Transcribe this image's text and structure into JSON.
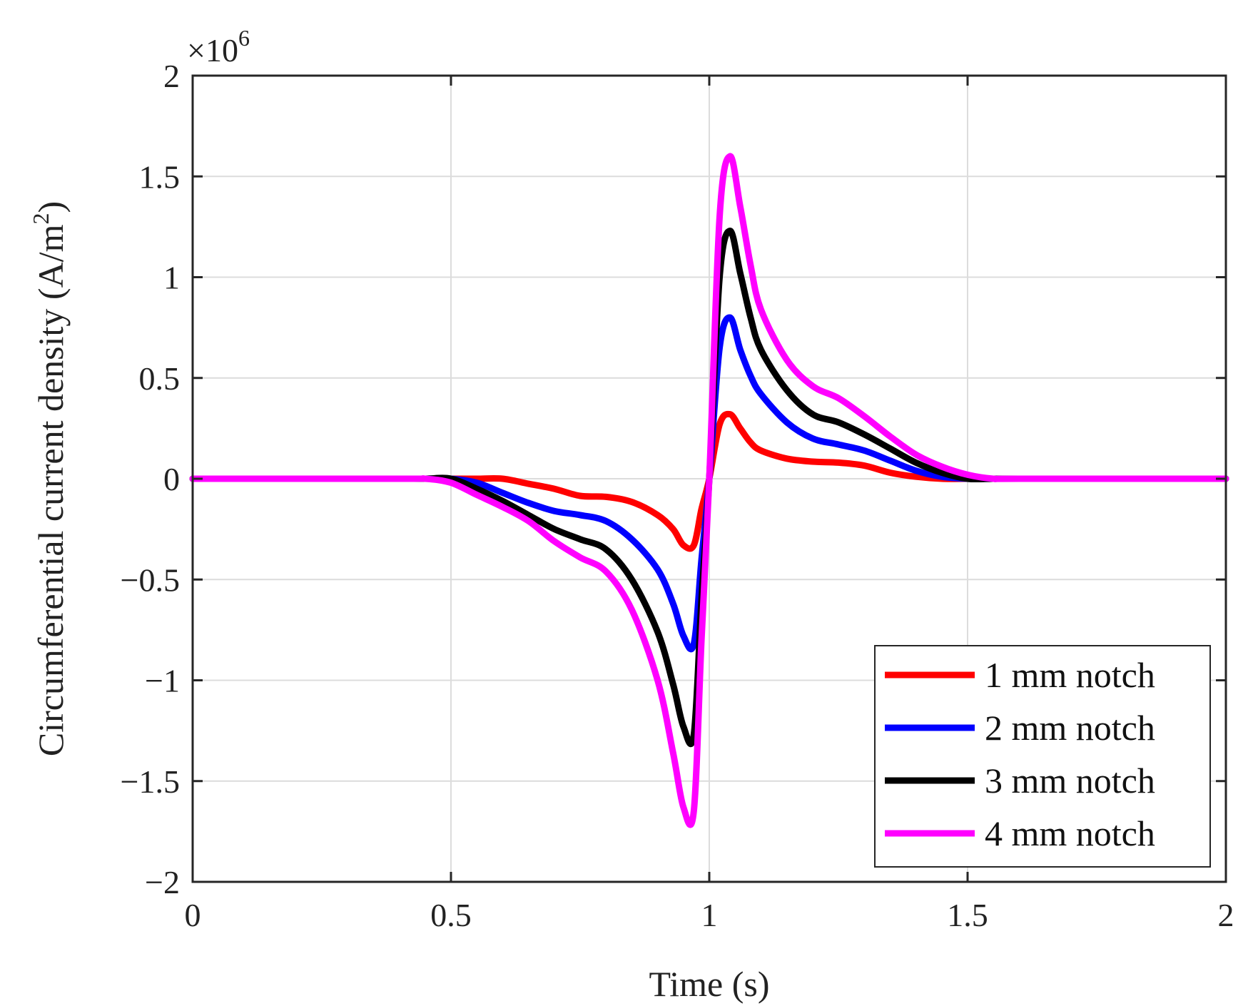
{
  "chart_data": {
    "type": "line",
    "title": "",
    "xlabel": "Time (s)",
    "ylabel": "Circumferential current density (A/m",
    "ylabel_sup": "2",
    "ylabel_close": ")",
    "y_exponent_base": "×10",
    "y_exponent_power": "6",
    "xlim": [
      0,
      2
    ],
    "ylim": [
      -2000000,
      2000000
    ],
    "xticks": [
      0,
      0.5,
      1,
      1.5,
      2
    ],
    "xtick_labels": [
      "0",
      "0.5",
      "1",
      "1.5",
      "2"
    ],
    "yticks": [
      -2000000,
      -1500000,
      -1000000,
      -500000,
      0,
      500000,
      1000000,
      1500000,
      2000000
    ],
    "ytick_labels": [
      "−2",
      "−1.5",
      "−1",
      "−0.5",
      "0",
      "0.5",
      "1",
      "1.5",
      "2"
    ],
    "grid": true,
    "legend_position": "bottom-right",
    "x": [
      0,
      0.4,
      0.45,
      0.5,
      0.55,
      0.6,
      0.65,
      0.7,
      0.75,
      0.8,
      0.85,
      0.9,
      0.93,
      0.95,
      0.97,
      0.985,
      1.0,
      1.02,
      1.04,
      1.06,
      1.08,
      1.1,
      1.15,
      1.2,
      1.25,
      1.3,
      1.35,
      1.4,
      1.45,
      1.5,
      1.55,
      1.6,
      2.0
    ],
    "series": [
      {
        "name": "1 mm notch",
        "color": "#ff0000",
        "values": [
          0,
          0,
          0,
          0,
          0,
          0,
          -25000,
          -50000,
          -85000,
          -90000,
          -115000,
          -180000,
          -250000,
          -330000,
          -330000,
          -150000,
          0,
          270000,
          320000,
          250000,
          180000,
          140000,
          100000,
          85000,
          80000,
          65000,
          30000,
          10000,
          0,
          0,
          0,
          0,
          0
        ]
      },
      {
        "name": "2 mm notch",
        "color": "#0000ff",
        "values": [
          0,
          0,
          0,
          0,
          -20000,
          -70000,
          -120000,
          -160000,
          -180000,
          -210000,
          -300000,
          -450000,
          -620000,
          -780000,
          -820000,
          -400000,
          0,
          650000,
          800000,
          640000,
          510000,
          420000,
          280000,
          200000,
          170000,
          140000,
          90000,
          40000,
          10000,
          0,
          0,
          0,
          0
        ]
      },
      {
        "name": "3 mm notch",
        "color": "#000000",
        "values": [
          0,
          0,
          0,
          0,
          -50000,
          -110000,
          -180000,
          -250000,
          -300000,
          -350000,
          -500000,
          -760000,
          -1020000,
          -1230000,
          -1270000,
          -600000,
          0,
          1000000,
          1230000,
          1020000,
          800000,
          640000,
          440000,
          320000,
          280000,
          220000,
          150000,
          80000,
          30000,
          0,
          0,
          0,
          0
        ]
      },
      {
        "name": "4 mm notch",
        "color": "#ff00ff",
        "values": [
          0,
          0,
          0,
          -20000,
          -80000,
          -140000,
          -210000,
          -310000,
          -390000,
          -460000,
          -650000,
          -1000000,
          -1360000,
          -1630000,
          -1650000,
          -800000,
          0,
          1300000,
          1600000,
          1350000,
          1060000,
          840000,
          590000,
          460000,
          400000,
          310000,
          210000,
          120000,
          60000,
          20000,
          0,
          0,
          0
        ]
      }
    ]
  }
}
